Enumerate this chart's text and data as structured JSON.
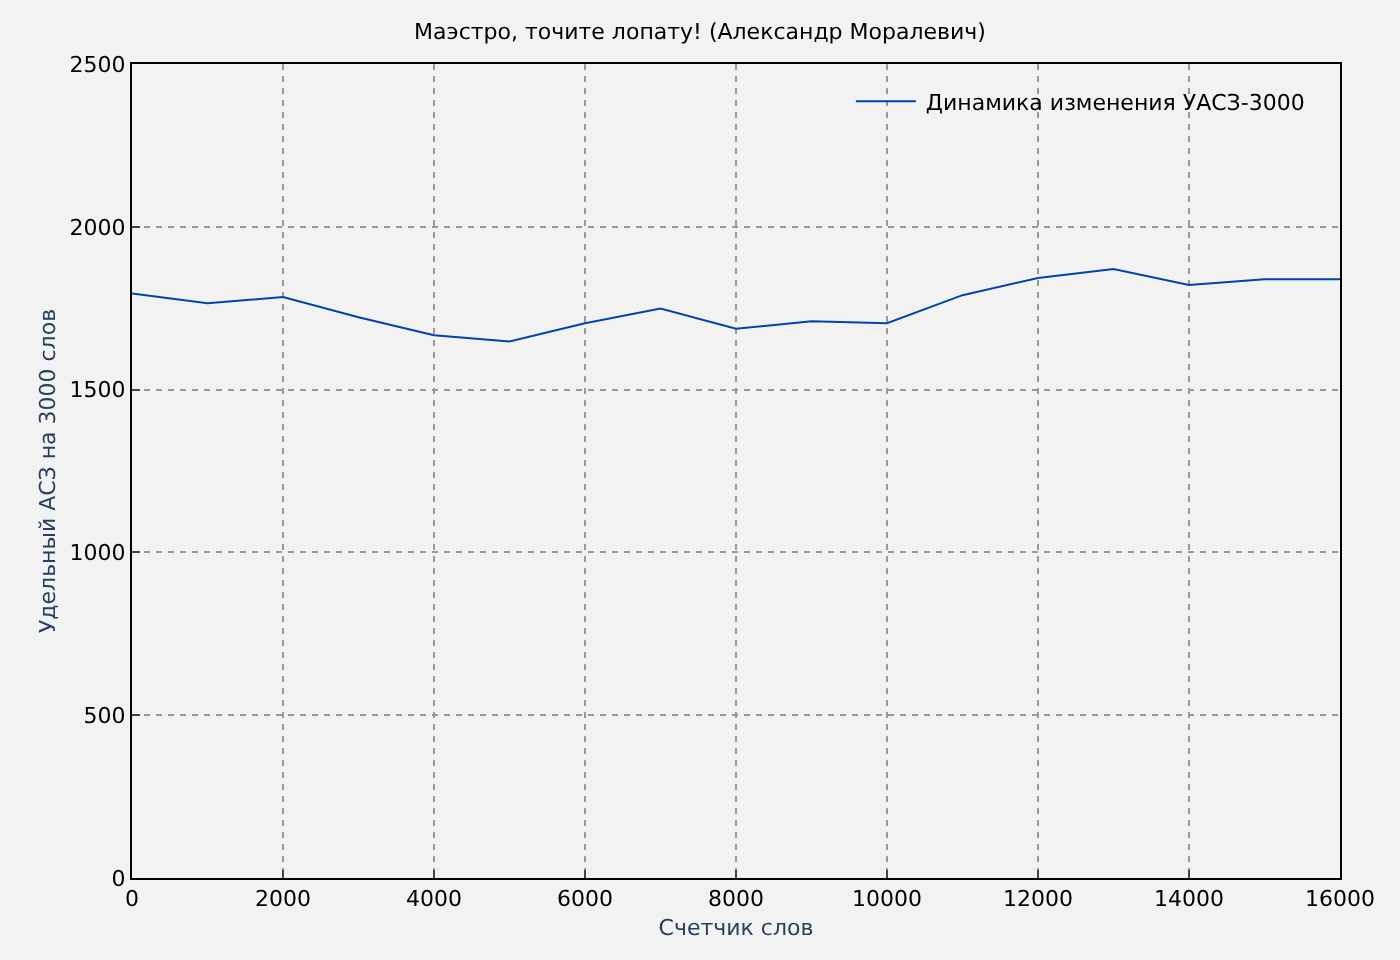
{
  "chart_data": {
    "type": "line",
    "title": "Маэстро, точите лопату! (Александр Моралевич)",
    "xlabel": "Счетчик слов",
    "ylabel": "Удельный АСЗ на 3000 слов",
    "x": [
      0,
      1000,
      2000,
      3000,
      4000,
      5000,
      6000,
      7000,
      8000,
      9000,
      10000,
      11000,
      12000,
      13000,
      14000,
      15000,
      16000
    ],
    "series": [
      {
        "name": "Динамика изменения УАСЗ-3000",
        "color": "#0044aa",
        "values": [
          1795,
          1765,
          1784,
          1722,
          1667,
          1648,
          1704,
          1749,
          1687,
          1710,
          1704,
          1790,
          1843,
          1870,
          1821,
          1839,
          1839
        ]
      }
    ],
    "xlim": [
      0,
      16000
    ],
    "xticks": [
      0,
      2000,
      4000,
      6000,
      8000,
      10000,
      12000,
      14000,
      16000
    ],
    "ylim": [
      0,
      2500
    ],
    "yticks": [
      0,
      500,
      1000,
      1500,
      2000,
      2500
    ],
    "grid": true,
    "legend": "top right",
    "marker": "none",
    "line_style": "solid"
  }
}
